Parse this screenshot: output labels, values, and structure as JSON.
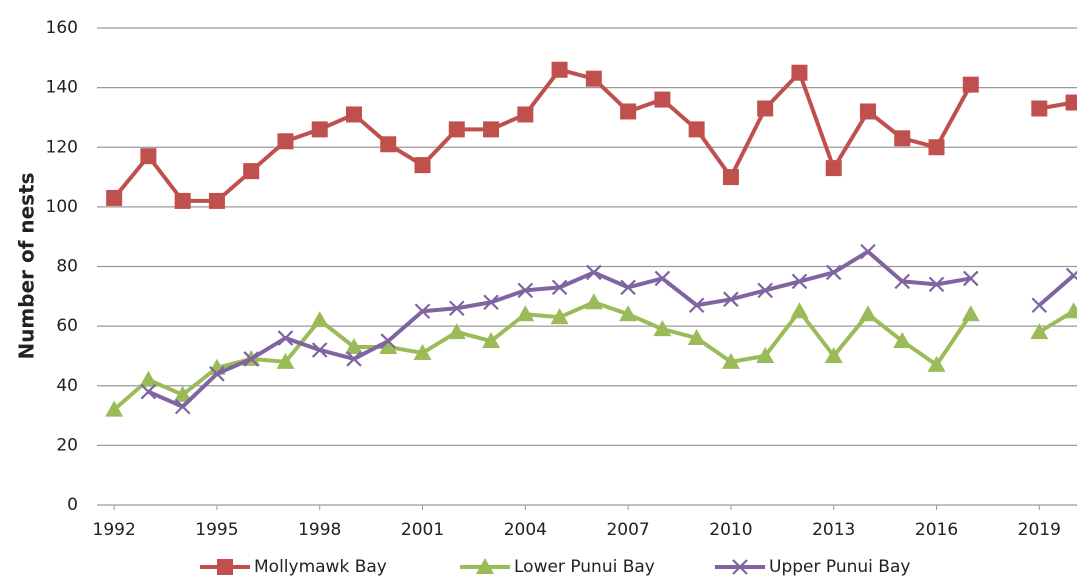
{
  "chart_data": {
    "type": "line",
    "y_label": "Number of nests",
    "x": [
      1992,
      1993,
      1994,
      1995,
      1996,
      1997,
      1998,
      1999,
      2000,
      2001,
      2002,
      2003,
      2004,
      2005,
      2006,
      2007,
      2008,
      2009,
      2010,
      2011,
      2012,
      2013,
      2014,
      2015,
      2016,
      2017,
      2018,
      2019,
      2020
    ],
    "series": [
      {
        "name": "Mollymawk Bay",
        "color": "#c0504d",
        "marker": "square",
        "values": [
          103,
          117,
          102,
          102,
          112,
          122,
          126,
          131,
          121,
          114,
          126,
          126,
          131,
          146,
          143,
          132,
          136,
          126,
          110,
          133,
          145,
          113,
          132,
          123,
          120,
          141,
          null,
          133,
          135
        ]
      },
      {
        "name": "Lower Punui Bay",
        "color": "#9bbb59",
        "marker": "triangle",
        "values": [
          32,
          42,
          37,
          46,
          49,
          48,
          62,
          53,
          53,
          51,
          58,
          55,
          64,
          63,
          68,
          64,
          59,
          56,
          48,
          50,
          65,
          50,
          64,
          55,
          47,
          64,
          null,
          58,
          65
        ]
      },
      {
        "name": "Upper Punui Bay",
        "color": "#8064a2",
        "marker": "x",
        "values": [
          null,
          38,
          33,
          44,
          49,
          56,
          52,
          49,
          55,
          65,
          66,
          68,
          72,
          73,
          78,
          73,
          76,
          67,
          69,
          72,
          75,
          78,
          85,
          75,
          74,
          76,
          null,
          67,
          77
        ]
      }
    ],
    "xlim": [
      1991.5,
      2020.1
    ],
    "xticks": [
      1992,
      1995,
      1998,
      2001,
      2004,
      2007,
      2010,
      2013,
      2016,
      2019
    ],
    "ylim": [
      0,
      160
    ],
    "yticks": [
      0,
      20,
      40,
      60,
      80,
      100,
      120,
      140,
      160
    ],
    "grid": true,
    "legend": "bottom"
  }
}
